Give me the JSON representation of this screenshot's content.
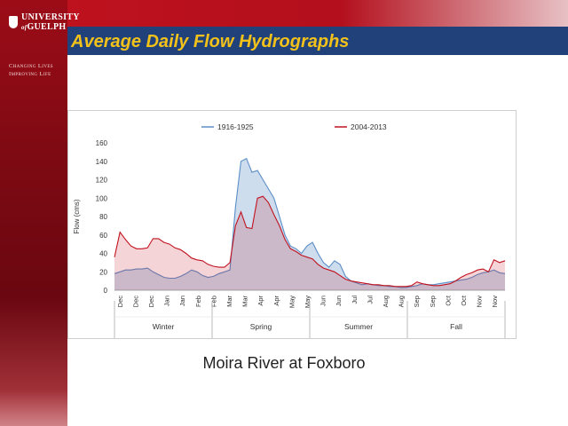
{
  "slide": {
    "logo_text_line1": "UNIVERSITY",
    "logo_text_line2": "GUELPH",
    "logo_prefix": "of",
    "tagline_line1": "Changing Lives",
    "tagline_line2": "Improving Life",
    "title": "Average Daily Flow Hydrographs",
    "caption": "Moira River at Foxboro",
    "colors": {
      "title": "#f2c21b",
      "titlebar": "#20417a",
      "red": "#c1121f",
      "dark_red": "#7f0a13"
    }
  },
  "chart_data": {
    "type": "area",
    "title": "",
    "xlabel": "",
    "ylabel": "Flow (cms)",
    "ylim": [
      0,
      160
    ],
    "yticks": [
      0,
      20,
      40,
      60,
      80,
      100,
      120,
      140,
      160
    ],
    "grid": false,
    "legend_position": "top",
    "months": [
      "Dec",
      "Dec",
      "Dec",
      "Jan",
      "Jan",
      "Feb",
      "Feb",
      "Mar",
      "Mar",
      "Apr",
      "Apr",
      "May",
      "May",
      "Jun",
      "Jun",
      "Jul",
      "Jul",
      "Aug",
      "Aug",
      "Sep",
      "Sep",
      "Oct",
      "Oct",
      "Nov",
      "Nov"
    ],
    "seasons": [
      "Winter",
      "Spring",
      "Summer",
      "Fall"
    ],
    "series": [
      {
        "name": "1916-1925",
        "color": "#5b8ec7",
        "fill": "rgba(91,142,199,0.30)",
        "values": [
          18,
          20,
          22,
          22,
          23,
          23,
          24,
          20,
          17,
          14,
          13,
          13,
          15,
          18,
          22,
          20,
          16,
          14,
          15,
          18,
          20,
          22,
          90,
          140,
          143,
          128,
          130,
          120,
          110,
          100,
          80,
          60,
          48,
          45,
          40,
          48,
          52,
          40,
          30,
          25,
          32,
          28,
          15,
          10,
          8,
          6,
          7,
          6,
          5,
          5,
          4,
          4,
          3,
          3,
          4,
          5,
          7,
          6,
          6,
          7,
          8,
          9,
          10,
          11,
          12,
          14,
          17,
          19,
          20,
          22,
          19,
          18
        ]
      },
      {
        "name": "2004-2013",
        "color": "#c1121f",
        "fill": "rgba(193,18,31,0.18)",
        "values": [
          36,
          63,
          55,
          48,
          45,
          45,
          46,
          56,
          56,
          52,
          50,
          46,
          44,
          40,
          35,
          33,
          32,
          28,
          26,
          25,
          25,
          30,
          70,
          85,
          68,
          67,
          100,
          102,
          95,
          82,
          70,
          55,
          45,
          42,
          38,
          36,
          34,
          28,
          24,
          22,
          20,
          16,
          12,
          10,
          9,
          8,
          7,
          6,
          6,
          5,
          5,
          4,
          4,
          4,
          5,
          9,
          7,
          6,
          5,
          5,
          6,
          7,
          10,
          14,
          17,
          19,
          22,
          23,
          20,
          33,
          30,
          32
        ]
      }
    ]
  }
}
